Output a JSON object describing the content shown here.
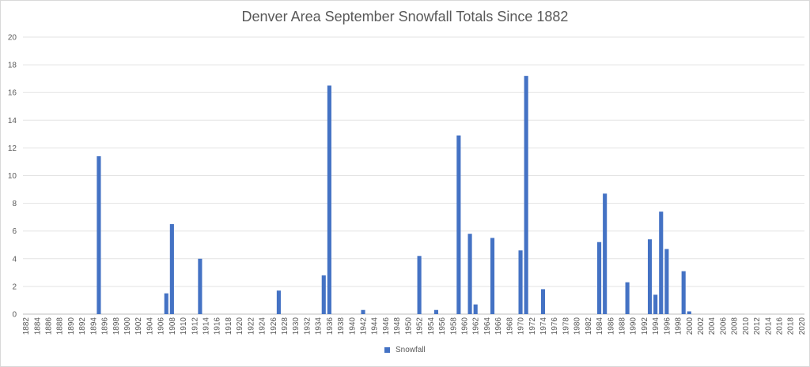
{
  "chart_data": {
    "type": "bar",
    "title": "Denver Area September Snowfall Totals Since 1882",
    "xlabel": "",
    "ylabel": "",
    "x_range": [
      1882,
      2020
    ],
    "x_tick_step": 2,
    "ylim": [
      0,
      20
    ],
    "y_ticks": [
      0,
      2,
      4,
      6,
      8,
      10,
      12,
      14,
      16,
      18,
      20
    ],
    "grid": true,
    "legend": "bottom",
    "bar_color": "#4472c4",
    "series": [
      {
        "name": "Snowfall",
        "points": [
          {
            "x": 1895,
            "y": 11.4
          },
          {
            "x": 1907,
            "y": 1.5
          },
          {
            "x": 1908,
            "y": 6.5
          },
          {
            "x": 1913,
            "y": 4.0
          },
          {
            "x": 1927,
            "y": 1.7
          },
          {
            "x": 1935,
            "y": 2.8
          },
          {
            "x": 1936,
            "y": 16.5
          },
          {
            "x": 1942,
            "y": 0.3
          },
          {
            "x": 1952,
            "y": 4.2
          },
          {
            "x": 1955,
            "y": 0.3
          },
          {
            "x": 1959,
            "y": 12.9
          },
          {
            "x": 1961,
            "y": 5.8
          },
          {
            "x": 1962,
            "y": 0.7
          },
          {
            "x": 1965,
            "y": 5.5
          },
          {
            "x": 1970,
            "y": 4.6
          },
          {
            "x": 1971,
            "y": 17.2
          },
          {
            "x": 1974,
            "y": 1.8
          },
          {
            "x": 1984,
            "y": 5.2
          },
          {
            "x": 1985,
            "y": 8.7
          },
          {
            "x": 1989,
            "y": 2.3
          },
          {
            "x": 1993,
            "y": 5.4
          },
          {
            "x": 1994,
            "y": 1.4
          },
          {
            "x": 1995,
            "y": 7.4
          },
          {
            "x": 1996,
            "y": 4.7
          },
          {
            "x": 1999,
            "y": 3.1
          },
          {
            "x": 2000,
            "y": 0.2
          }
        ]
      }
    ]
  }
}
